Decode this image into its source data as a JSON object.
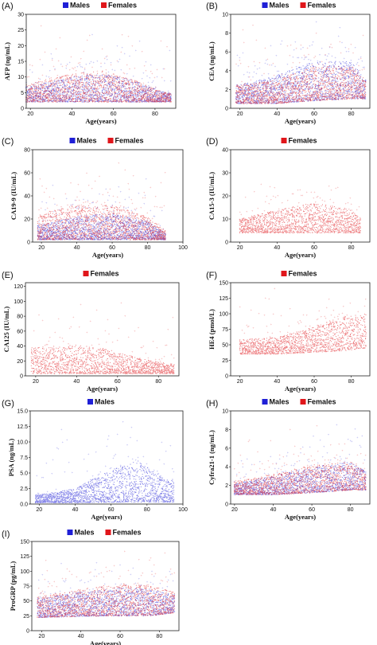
{
  "colors": {
    "males": "#1f1fd6",
    "females": "#e0161b"
  },
  "chart_data": [
    {
      "panel": "(A)",
      "type": "scatter",
      "ylabel": "AFP (ng/mL)",
      "xlabel": "Age(years)",
      "legend": [
        "Males",
        "Females"
      ],
      "xlim": [
        18,
        90
      ],
      "ylim": [
        0,
        30
      ],
      "xticks": [
        20,
        40,
        60,
        80
      ],
      "yticks": [
        0,
        5,
        10,
        15,
        20,
        25,
        30
      ],
      "x_range": [
        18,
        88
      ],
      "series": [
        {
          "name": "Males",
          "color": "males",
          "y_profile": [
            [
              20,
              2,
              7
            ],
            [
              40,
              2,
              10
            ],
            [
              55,
              2,
              11
            ],
            [
              70,
              2,
              9
            ],
            [
              85,
              2,
              5
            ]
          ],
          "outlier_max": 24
        },
        {
          "name": "Females",
          "color": "females",
          "y_profile": [
            [
              20,
              2,
              8
            ],
            [
              40,
              2,
              11
            ],
            [
              55,
              2,
              12
            ],
            [
              70,
              2,
              9
            ],
            [
              85,
              2,
              5
            ]
          ],
          "outlier_max": 27
        }
      ]
    },
    {
      "panel": "(B)",
      "type": "scatter",
      "ylabel": "CEA (ng/mL)",
      "xlabel": "Age(years)",
      "legend": [
        "Males",
        "Females"
      ],
      "xlim": [
        15,
        90
      ],
      "ylim": [
        0,
        10
      ],
      "xticks": [
        20,
        40,
        60,
        80
      ],
      "yticks": [
        0,
        2,
        4,
        6,
        8,
        10
      ],
      "x_range": [
        18,
        88
      ],
      "series": [
        {
          "name": "Males",
          "color": "males",
          "y_profile": [
            [
              20,
              0.5,
              2.5
            ],
            [
              40,
              0.5,
              3.5
            ],
            [
              60,
              0.8,
              5
            ],
            [
              80,
              1,
              5
            ],
            [
              88,
              1,
              3
            ]
          ],
          "outlier_max": 9.5
        },
        {
          "name": "Females",
          "color": "females",
          "y_profile": [
            [
              20,
              0.5,
              2.5
            ],
            [
              40,
              0.5,
              3
            ],
            [
              60,
              0.8,
              4.5
            ],
            [
              80,
              1,
              4.5
            ],
            [
              88,
              1,
              3
            ]
          ],
          "outlier_max": 9.5
        }
      ]
    },
    {
      "panel": "(C)",
      "type": "scatter",
      "ylabel": "CA19-9 (IU/mL)",
      "xlabel": "Age(years)",
      "legend": [
        "Males",
        "Females"
      ],
      "xlim": [
        15,
        100
      ],
      "ylim": [
        0,
        80
      ],
      "xticks": [
        20,
        40,
        60,
        80,
        100
      ],
      "yticks": [
        0,
        20,
        40,
        60,
        80
      ],
      "x_range": [
        18,
        90
      ],
      "series": [
        {
          "name": "Males",
          "color": "males",
          "y_profile": [
            [
              20,
              2,
              15
            ],
            [
              40,
              2,
              22
            ],
            [
              60,
              2,
              25
            ],
            [
              80,
              2,
              18
            ],
            [
              90,
              2,
              8
            ]
          ],
          "outlier_max": 60
        },
        {
          "name": "Females",
          "color": "females",
          "y_profile": [
            [
              20,
              2,
              25
            ],
            [
              40,
              2,
              32
            ],
            [
              60,
              2,
              32
            ],
            [
              80,
              2,
              22
            ],
            [
              90,
              2,
              10
            ]
          ],
          "outlier_max": 80
        }
      ]
    },
    {
      "panel": "(D)",
      "type": "scatter",
      "ylabel": "CA15-3 (IU/mL)",
      "xlabel": "Age(years)",
      "legend": [
        "Females"
      ],
      "xlim": [
        15,
        90
      ],
      "ylim": [
        0,
        40
      ],
      "xticks": [
        20,
        40,
        60,
        80
      ],
      "yticks": [
        0,
        10,
        20,
        30,
        40
      ],
      "x_range": [
        20,
        85
      ],
      "series": [
        {
          "name": "Females",
          "color": "females",
          "y_profile": [
            [
              20,
              4,
              10
            ],
            [
              40,
              4,
              14
            ],
            [
              60,
              4,
              17
            ],
            [
              80,
              4,
              14
            ],
            [
              85,
              4,
              10
            ]
          ],
          "outlier_max": 32
        }
      ]
    },
    {
      "panel": "(E)",
      "type": "scatter",
      "ylabel": "CA125 (IU/mL)",
      "xlabel": "Age(years)",
      "legend": [
        "Females"
      ],
      "xlim": [
        15,
        90
      ],
      "ylim": [
        0,
        125
      ],
      "xticks": [
        20,
        40,
        60,
        80
      ],
      "yticks": [
        0,
        20,
        40,
        60,
        80,
        100,
        120
      ],
      "x_range": [
        18,
        88
      ],
      "series": [
        {
          "name": "Females",
          "color": "females",
          "y_profile": [
            [
              20,
              3,
              38
            ],
            [
              40,
              3,
              42
            ],
            [
              55,
              3,
              36
            ],
            [
              70,
              3,
              24
            ],
            [
              85,
              3,
              16
            ]
          ],
          "outlier_max": 110
        }
      ]
    },
    {
      "panel": "(F)",
      "type": "scatter",
      "ylabel": "HE4 (pmol/L)",
      "xlabel": "Age(years)",
      "legend": [
        "Females"
      ],
      "xlim": [
        15,
        90
      ],
      "ylim": [
        0,
        150
      ],
      "xticks": [
        20,
        40,
        60,
        80
      ],
      "yticks": [
        0,
        25,
        50,
        75,
        100,
        125,
        150
      ],
      "x_range": [
        20,
        88
      ],
      "series": [
        {
          "name": "Females",
          "color": "females",
          "y_profile": [
            [
              20,
              35,
              58
            ],
            [
              40,
              35,
              62
            ],
            [
              60,
              38,
              80
            ],
            [
              75,
              40,
              95
            ],
            [
              88,
              45,
              100
            ]
          ],
          "outlier_max": 145
        }
      ]
    },
    {
      "panel": "(G)",
      "type": "scatter",
      "ylabel": "PSA (ng/mL)",
      "xlabel": "Age(years)",
      "legend": [
        "Males"
      ],
      "xlim": [
        15,
        100
      ],
      "ylim": [
        0,
        15
      ],
      "xticks": [
        20,
        40,
        60,
        80,
        100
      ],
      "yticks": [
        0,
        2.5,
        5,
        7.5,
        10,
        12.5,
        15
      ],
      "ytick_labels": [
        "0.0",
        "2.5",
        "5.0",
        "7.5",
        "10.0",
        "12.5",
        "15.0"
      ],
      "x_range": [
        18,
        95
      ],
      "series": [
        {
          "name": "Males",
          "color": "males",
          "y_profile": [
            [
              20,
              0.2,
              1.5
            ],
            [
              40,
              0.2,
              2.5
            ],
            [
              60,
              0.3,
              5.5
            ],
            [
              75,
              0.3,
              7
            ],
            [
              90,
              0.3,
              4
            ]
          ],
          "outlier_max": 15
        }
      ]
    },
    {
      "panel": "(H)",
      "type": "scatter",
      "ylabel": "Cyfra21-1 (ng/mL)",
      "xlabel": "Age(years)",
      "legend": [
        "Males",
        "Females"
      ],
      "xlim": [
        18,
        90
      ],
      "ylim": [
        0,
        10
      ],
      "xticks": [
        20,
        40,
        60,
        80
      ],
      "yticks": [
        0,
        2,
        4,
        6,
        8,
        10
      ],
      "x_range": [
        20,
        88
      ],
      "series": [
        {
          "name": "Males",
          "color": "males",
          "y_profile": [
            [
              20,
              1,
              2.2
            ],
            [
              40,
              1,
              3
            ],
            [
              60,
              1.2,
              4
            ],
            [
              80,
              1.5,
              4.5
            ],
            [
              88,
              1.5,
              3.5
            ]
          ],
          "outlier_max": 9
        },
        {
          "name": "Females",
          "color": "females",
          "y_profile": [
            [
              20,
              1,
              2.4
            ],
            [
              40,
              1,
              3.2
            ],
            [
              60,
              1.2,
              4.2
            ],
            [
              80,
              1.5,
              4.6
            ],
            [
              88,
              1.5,
              3.5
            ]
          ],
          "outlier_max": 9
        }
      ]
    },
    {
      "panel": "(I)",
      "type": "scatter",
      "ylabel": "ProGRP (pg/mL)",
      "xlabel": "Age(years)",
      "legend": [
        "Males",
        "Females"
      ],
      "xlim": [
        15,
        90
      ],
      "ylim": [
        0,
        150
      ],
      "xticks": [
        20,
        40,
        60,
        80
      ],
      "yticks": [
        0,
        25,
        50,
        75,
        100,
        125,
        150
      ],
      "x_range": [
        18,
        88
      ],
      "series": [
        {
          "name": "Males",
          "color": "males",
          "y_profile": [
            [
              20,
              22,
              55
            ],
            [
              40,
              24,
              65
            ],
            [
              60,
              25,
              72
            ],
            [
              75,
              25,
              70
            ],
            [
              88,
              30,
              60
            ]
          ],
          "outlier_max": 125
        },
        {
          "name": "Females",
          "color": "females",
          "y_profile": [
            [
              20,
              22,
              58
            ],
            [
              40,
              24,
              70
            ],
            [
              60,
              25,
              80
            ],
            [
              75,
              25,
              75
            ],
            [
              88,
              30,
              65
            ]
          ],
          "outlier_max": 140
        }
      ]
    }
  ]
}
